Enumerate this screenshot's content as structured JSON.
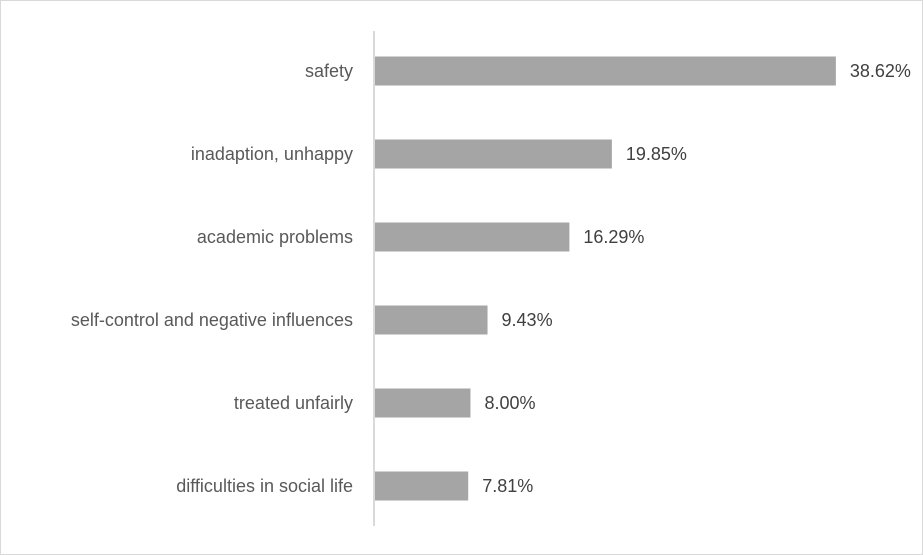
{
  "chart_data": {
    "type": "bar",
    "orientation": "horizontal",
    "categories": [
      "safety",
      "inadaption, unhappy",
      "academic problems",
      "self-control and negative influences",
      "treated unfairly",
      "difficulties in social life"
    ],
    "values": [
      38.62,
      19.85,
      16.29,
      9.43,
      8.0,
      7.81
    ],
    "value_labels": [
      "38.62%",
      "19.85%",
      "16.29%",
      "9.43%",
      "8.00%",
      "7.81%"
    ],
    "unit": "%",
    "xlim": [
      0,
      45
    ],
    "grid": false,
    "legend": "none",
    "colors": {
      "bar": "#a5a5a5",
      "axis": "#d9d9d9",
      "category_text": "#595959",
      "value_text": "#404040",
      "border": "#d9d9d9"
    }
  }
}
